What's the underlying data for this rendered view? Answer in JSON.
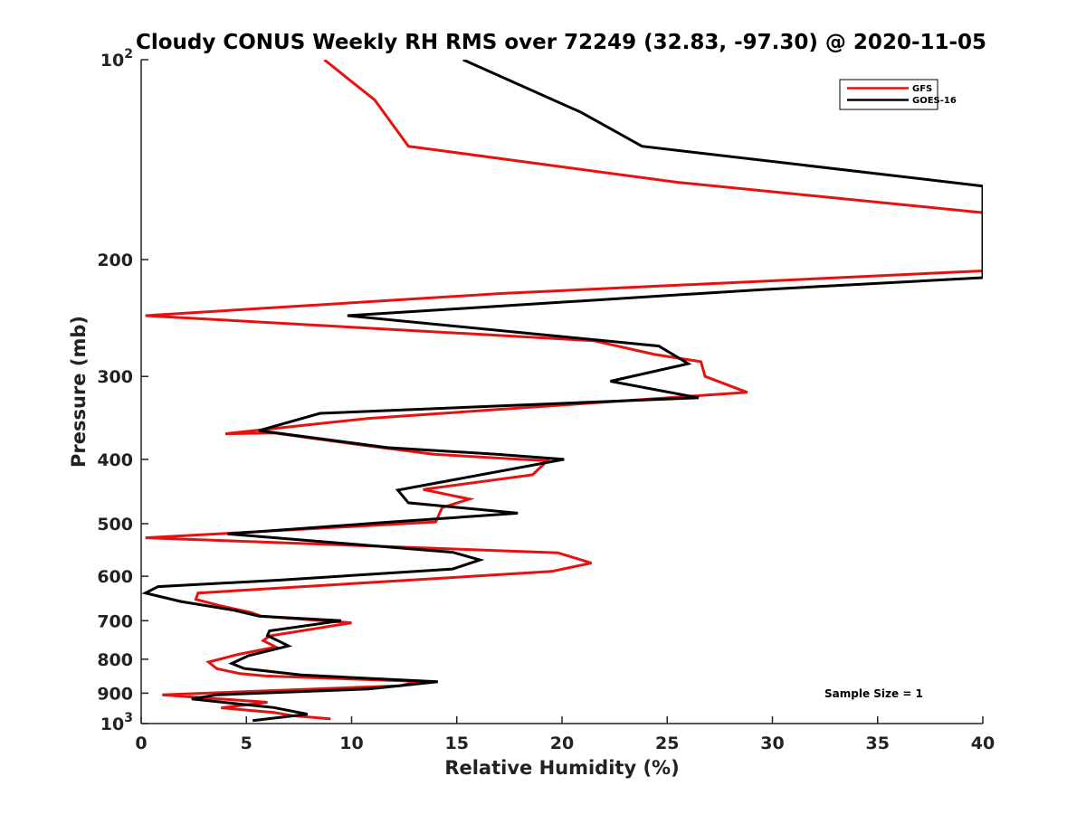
{
  "chart_data": {
    "type": "line",
    "title": "Cloudy CONUS Weekly RH RMS over 72249 (32.83, -97.30) @ 2020-11-05",
    "xlabel": "Relative Humidity (%)",
    "ylabel": "Pressure (mb)",
    "xlim": [
      0,
      40
    ],
    "ylim": [
      100,
      1000
    ],
    "y_scale": "log",
    "y_reversed": true,
    "x_ticks": [
      "0",
      "5",
      "10",
      "15",
      "20",
      "25",
      "30",
      "35",
      "40"
    ],
    "y_ticks": [
      {
        "value": 100,
        "base": "10",
        "exp": "2"
      },
      {
        "value": 200,
        "label": "200"
      },
      {
        "value": 300,
        "label": "300"
      },
      {
        "value": 400,
        "label": "400"
      },
      {
        "value": 500,
        "label": "500"
      },
      {
        "value": 600,
        "label": "600"
      },
      {
        "value": 700,
        "label": "700"
      },
      {
        "value": 800,
        "label": "800"
      },
      {
        "value": 900,
        "label": "900"
      },
      {
        "value": 1000,
        "base": "10",
        "exp": "3"
      }
    ],
    "legend_position": "top-right",
    "annotation": "Sample Size = 1",
    "series": [
      {
        "name": "GFS",
        "color": "#e8110f",
        "points": [
          [
            8.7,
            100
          ],
          [
            11.1,
            115
          ],
          [
            12.7,
            135
          ],
          [
            25.5,
            153
          ],
          [
            40,
            170
          ],
          [
            40,
            208
          ],
          [
            17.1,
            225
          ],
          [
            0.2,
            243
          ],
          [
            21.5,
            265
          ],
          [
            24.4,
            278
          ],
          [
            26.6,
            285
          ],
          [
            26.8,
            300
          ],
          [
            28.8,
            317
          ],
          [
            10.8,
            347
          ],
          [
            4.0,
            366
          ],
          [
            6.3,
            365
          ],
          [
            10.6,
            381
          ],
          [
            13.9,
            393
          ],
          [
            19.3,
            402
          ],
          [
            18.6,
            422
          ],
          [
            13.4,
            444
          ],
          [
            15.6,
            459
          ],
          [
            14.3,
            473
          ],
          [
            14.0,
            497
          ],
          [
            0.2,
            525
          ],
          [
            19.8,
            553
          ],
          [
            21.4,
            573
          ],
          [
            19.5,
            590
          ],
          [
            2.7,
            636
          ],
          [
            2.6,
            650
          ],
          [
            3.8,
            665
          ],
          [
            5.2,
            680
          ],
          [
            5.7,
            689
          ],
          [
            10.0,
            705
          ],
          [
            6.1,
            738
          ],
          [
            5.8,
            750
          ],
          [
            6.4,
            767
          ],
          [
            4.6,
            787
          ],
          [
            3.2,
            808
          ],
          [
            3.6,
            827
          ],
          [
            4.7,
            841
          ],
          [
            5.9,
            848
          ],
          [
            13.2,
            864
          ],
          [
            12.3,
            877
          ],
          [
            1.0,
            905
          ],
          [
            6.0,
            929
          ],
          [
            3.8,
            947
          ],
          [
            6.3,
            962
          ],
          [
            7.2,
            973
          ],
          [
            9.0,
            984
          ]
        ]
      },
      {
        "name": "GOES-16",
        "color": "#000000",
        "points": [
          [
            15.3,
            100
          ],
          [
            20.9,
            120
          ],
          [
            23.8,
            135
          ],
          [
            40,
            155
          ],
          [
            40,
            213
          ],
          [
            29.5,
            222
          ],
          [
            9.8,
            243
          ],
          [
            24.6,
            270
          ],
          [
            26.0,
            287
          ],
          [
            22.3,
            305
          ],
          [
            26.5,
            323
          ],
          [
            8.5,
            341
          ],
          [
            5.6,
            362
          ],
          [
            11.7,
            384
          ],
          [
            16.9,
            393
          ],
          [
            20.1,
            400
          ],
          [
            12.2,
            445
          ],
          [
            12.7,
            465
          ],
          [
            17.9,
            482
          ],
          [
            11.5,
            498
          ],
          [
            4.1,
            518
          ],
          [
            14.8,
            552
          ],
          [
            16.1,
            567
          ],
          [
            14.8,
            585
          ],
          [
            6.6,
            608
          ],
          [
            0.8,
            622
          ],
          [
            0.2,
            636
          ],
          [
            1.9,
            655
          ],
          [
            4.4,
            675
          ],
          [
            5.6,
            689
          ],
          [
            9.5,
            700
          ],
          [
            6.1,
            725
          ],
          [
            6.0,
            737
          ],
          [
            7.0,
            764
          ],
          [
            5.1,
            790
          ],
          [
            4.3,
            812
          ],
          [
            4.9,
            826
          ],
          [
            7.6,
            845
          ],
          [
            14.1,
            865
          ],
          [
            10.8,
            887
          ],
          [
            3.6,
            905
          ],
          [
            2.4,
            918
          ],
          [
            4.2,
            931
          ],
          [
            6.3,
            946
          ],
          [
            7.9,
            968
          ],
          [
            5.3,
            990
          ]
        ]
      }
    ]
  }
}
